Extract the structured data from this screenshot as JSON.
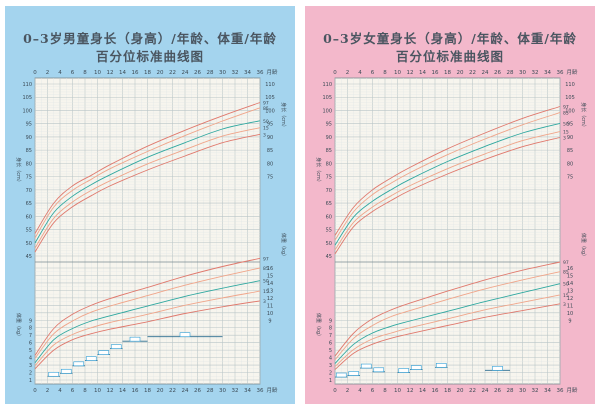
{
  "colors": {
    "boy_bg": "#a4d4ee",
    "girl_bg": "#f3b8cb",
    "plot_bg": "#f7f5ee",
    "grid_minor": "#dfe6e6",
    "grid_major": "#b9c5c7",
    "curve_3_97": "#e0796d",
    "curve_15_85": "#f0a58a",
    "curve_50": "#2fa8a0",
    "label": "#3b4a55",
    "box": "#2f9fd7"
  },
  "boy": {
    "title_line1": "0–3岁男童身长（身高）/年龄、体重/年龄",
    "title_line2": "百分位标准曲线图"
  },
  "girl": {
    "title_line1": "0–3岁女童身长（身高）/年龄、体重/年龄",
    "title_line2": "百分位标准曲线图"
  },
  "chart_data": [
    {
      "type": "line",
      "sex": "boy",
      "x_unit": "月龄",
      "x_ticks": [
        0,
        2,
        4,
        6,
        8,
        10,
        12,
        14,
        16,
        18,
        20,
        22,
        24,
        26,
        28,
        30,
        32,
        34,
        36
      ],
      "xlim": [
        0,
        36
      ],
      "length": {
        "ylim": [
          45,
          110
        ],
        "y_ticks_left": [
          45,
          50,
          55,
          60,
          65,
          70,
          75,
          80,
          85,
          90,
          95,
          100,
          105,
          110
        ],
        "y_ticks_right": [
          75,
          80,
          85,
          90,
          95,
          100,
          105,
          110
        ],
        "axis_label_left": "身长（cm）",
        "axis_label_right": "身长（cm）",
        "x": [
          0,
          3,
          6,
          9,
          12,
          18,
          24,
          30,
          36
        ],
        "series": [
          {
            "name": "97",
            "values": [
              53.5,
              65.0,
              71.5,
              75.5,
              79.5,
              86.5,
              92.5,
              98.0,
              103.0
            ]
          },
          {
            "name": "85",
            "values": [
              51.8,
              63.5,
              69.8,
              74.0,
              78.0,
              84.5,
              90.5,
              96.0,
              101.0
            ]
          },
          {
            "name": "50",
            "values": [
              49.9,
              61.4,
              67.6,
              72.0,
              75.7,
              82.3,
              87.8,
              93.0,
              96.1
            ]
          },
          {
            "name": "15",
            "values": [
              48.0,
              59.3,
              65.4,
              69.8,
              73.4,
              79.8,
              85.2,
              90.3,
              93.5
            ]
          },
          {
            "name": "3",
            "values": [
              46.5,
              57.6,
              63.6,
              67.8,
              71.5,
              77.5,
              82.8,
              87.8,
              91.0
            ]
          }
        ]
      },
      "weight": {
        "ylim": [
          1,
          16
        ],
        "y_ticks_left": [
          1,
          2,
          3,
          4,
          5,
          6,
          7,
          8,
          9
        ],
        "y_ticks_right": [
          9,
          10,
          11,
          12,
          13,
          14,
          15,
          16
        ],
        "axis_label_left": "体重（kg）",
        "axis_label_right": "体重（kg）",
        "x": [
          0,
          3,
          6,
          9,
          12,
          18,
          24,
          30,
          36
        ],
        "series": [
          {
            "name": "97",
            "values": [
              4.3,
              7.9,
              9.8,
              11.0,
              11.9,
              13.4,
              14.9,
              16.2,
              17.3
            ]
          },
          {
            "name": "85",
            "values": [
              3.9,
              7.2,
              8.9,
              10.1,
              10.9,
              12.3,
              13.7,
              14.9,
              16.0
            ]
          },
          {
            "name": "50",
            "values": [
              3.3,
              6.4,
              7.9,
              8.9,
              9.6,
              10.9,
              12.2,
              13.3,
              14.3
            ]
          },
          {
            "name": "15",
            "values": [
              2.9,
              5.7,
              7.1,
              8.0,
              8.7,
              9.8,
              11.0,
              12.0,
              12.9
            ]
          },
          {
            "name": "3",
            "values": [
              2.5,
              5.0,
              6.4,
              7.2,
              7.8,
              8.8,
              9.9,
              10.8,
              11.6
            ]
          }
        ]
      },
      "milestones": [
        {
          "x0": 2,
          "x1": 4,
          "w": 1.5
        },
        {
          "x0": 4,
          "x1": 6,
          "w": 1.9
        },
        {
          "x0": 6,
          "x1": 8,
          "w": 2.9
        },
        {
          "x0": 8,
          "x1": 10,
          "w": 3.6
        },
        {
          "x0": 10,
          "x1": 12,
          "w": 4.4
        },
        {
          "x0": 12,
          "x1": 14,
          "w": 5.2
        },
        {
          "x0": 14,
          "x1": 18,
          "w": 6.2
        },
        {
          "x0": 18,
          "x1": 30,
          "w": 6.8
        }
      ]
    },
    {
      "type": "line",
      "sex": "girl",
      "x_unit": "月龄",
      "x_ticks": [
        0,
        2,
        4,
        6,
        8,
        10,
        12,
        14,
        16,
        18,
        20,
        22,
        24,
        26,
        28,
        30,
        32,
        34,
        36
      ],
      "xlim": [
        0,
        36
      ],
      "length": {
        "ylim": [
          45,
          110
        ],
        "y_ticks_left": [
          45,
          50,
          55,
          60,
          65,
          70,
          75,
          80,
          85,
          90,
          95,
          100,
          105,
          110
        ],
        "y_ticks_right": [
          75,
          80,
          85,
          90,
          95,
          100,
          105,
          110
        ],
        "axis_label_left": "身长（cm）",
        "axis_label_right": "身长（cm）",
        "x": [
          0,
          3,
          6,
          9,
          12,
          18,
          24,
          30,
          36
        ],
        "series": [
          {
            "name": "97",
            "values": [
              52.8,
              63.5,
              70.0,
              74.5,
              78.5,
              85.5,
              91.5,
              97.0,
              101.5
            ]
          },
          {
            "name": "85",
            "values": [
              51.0,
              61.8,
              68.2,
              72.6,
              76.5,
              83.3,
              89.2,
              94.6,
              99.2
            ]
          },
          {
            "name": "50",
            "values": [
              49.1,
              59.8,
              65.7,
              70.1,
              74.0,
              80.7,
              86.4,
              91.5,
              95.1
            ]
          },
          {
            "name": "15",
            "values": [
              47.3,
              57.8,
              63.5,
              67.8,
              71.6,
              78.0,
              83.6,
              88.6,
              92.0
            ]
          },
          {
            "name": "3",
            "values": [
              45.8,
              56.2,
              61.8,
              66.0,
              69.8,
              76.0,
              81.5,
              86.3,
              89.8
            ]
          }
        ]
      },
      "weight": {
        "ylim": [
          1,
          16
        ],
        "y_ticks_left": [
          1,
          2,
          3,
          4,
          5,
          6,
          7,
          8,
          9
        ],
        "y_ticks_right": [
          9,
          10,
          11,
          12,
          13,
          14,
          15,
          16
        ],
        "axis_label_left": "体重（kg）",
        "axis_label_right": "体重（kg）",
        "x": [
          0,
          3,
          6,
          9,
          12,
          18,
          24,
          30,
          36
        ],
        "series": [
          {
            "name": "97",
            "values": [
              4.2,
              7.3,
              9.2,
              10.4,
              11.3,
              12.9,
              14.4,
              15.7,
              16.8
            ]
          },
          {
            "name": "85",
            "values": [
              3.7,
              6.6,
              8.3,
              9.5,
              10.3,
              11.8,
              13.2,
              14.4,
              15.5
            ]
          },
          {
            "name": "50",
            "values": [
              3.2,
              5.8,
              7.3,
              8.2,
              8.9,
              10.2,
              11.5,
              12.7,
              13.9
            ]
          },
          {
            "name": "15",
            "values": [
              2.8,
              5.1,
              6.5,
              7.3,
              8.0,
              9.2,
              10.4,
              11.4,
              12.4
            ]
          },
          {
            "name": "3",
            "values": [
              2.4,
              4.6,
              5.8,
              6.6,
              7.2,
              8.3,
              9.4,
              10.3,
              11.2
            ]
          }
        ]
      },
      "milestones": [
        {
          "x0": 0,
          "x1": 2,
          "w": 1.4
        },
        {
          "x0": 2,
          "x1": 4,
          "w": 1.6
        },
        {
          "x0": 4,
          "x1": 6,
          "w": 2.6
        },
        {
          "x0": 6,
          "x1": 8,
          "w": 2.1
        },
        {
          "x0": 10,
          "x1": 12,
          "w": 2.0
        },
        {
          "x0": 12,
          "x1": 14,
          "w": 2.4
        },
        {
          "x0": 16,
          "x1": 18,
          "w": 2.7
        },
        {
          "x0": 24,
          "x1": 28,
          "w": 2.3
        }
      ]
    }
  ]
}
